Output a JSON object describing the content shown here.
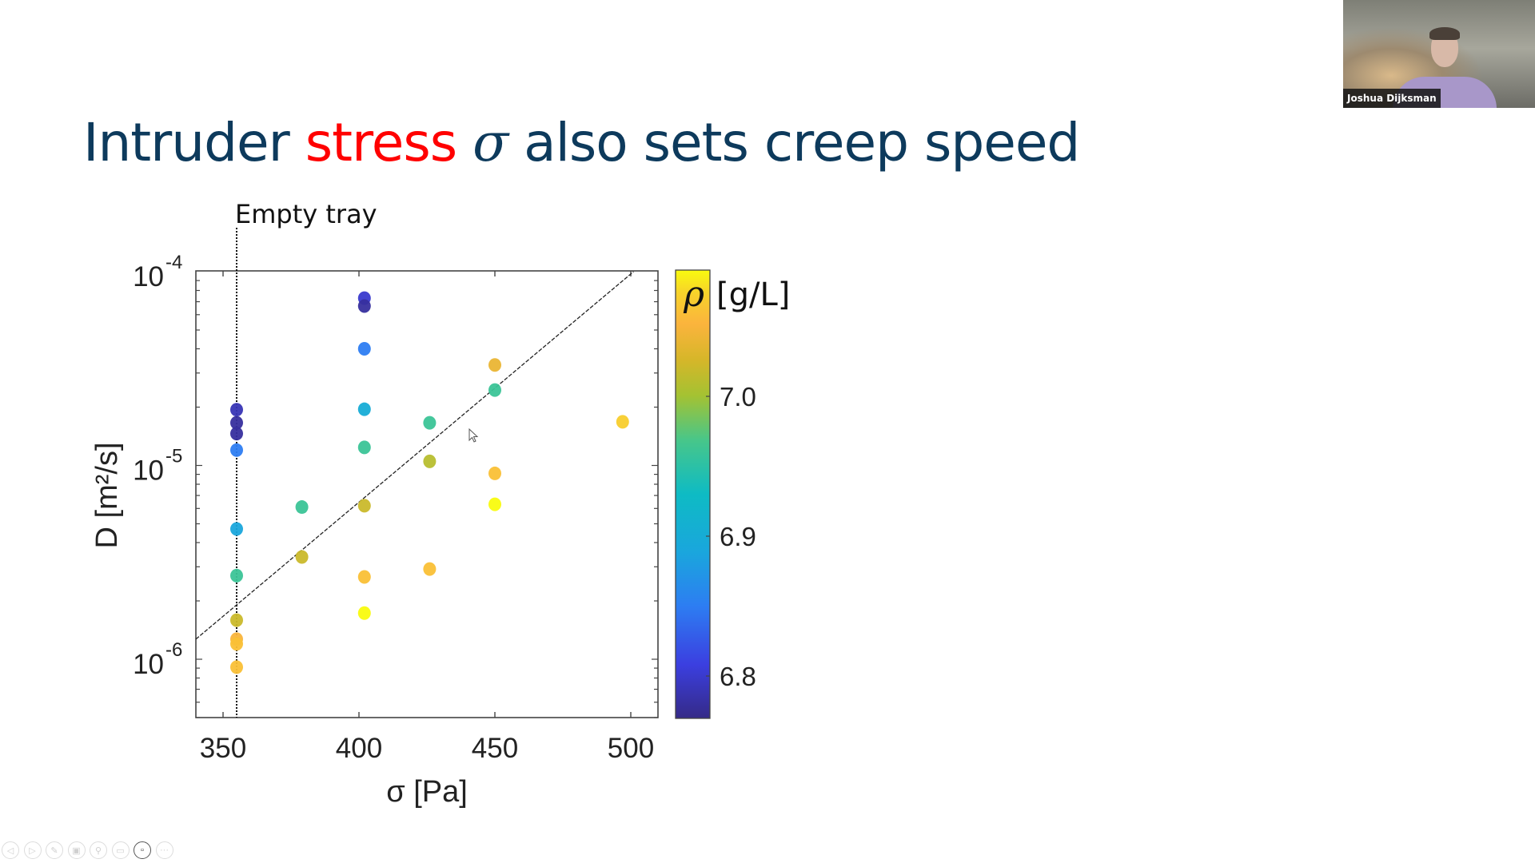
{
  "slide": {
    "title_parts": [
      {
        "text": "Intruder ",
        "style": "normal"
      },
      {
        "text": "stress",
        "style": "accent"
      },
      {
        "text": " ",
        "style": "normal"
      },
      {
        "text": "σ",
        "style": "sym"
      },
      {
        "text": " also sets creep speed",
        "style": "normal"
      }
    ],
    "colors": {
      "title": "#0d3a5c",
      "accent": "#ff0000"
    }
  },
  "webcam": {
    "participant_name": "Joshua Dijksman"
  },
  "toolbar": {
    "buttons": [
      {
        "name": "previous-slide",
        "glyph": "◁"
      },
      {
        "name": "next-slide",
        "glyph": "▷"
      },
      {
        "name": "pen",
        "glyph": "✎"
      },
      {
        "name": "see-all-slides",
        "glyph": "▣"
      },
      {
        "name": "zoom",
        "glyph": "⚲"
      },
      {
        "name": "subtitles",
        "glyph": "▭"
      },
      {
        "name": "camera",
        "glyph": "▫",
        "active": true
      },
      {
        "name": "more-options",
        "glyph": "···"
      }
    ]
  },
  "chart_data": {
    "type": "scatter",
    "title": "",
    "xlabel": "σ [Pa]",
    "ylabel": "D [m²/s]",
    "xscale": "linear",
    "yscale": "log",
    "xlim": [
      340,
      510
    ],
    "ylim": [
      5e-07,
      0.0001
    ],
    "xticks": [
      350,
      400,
      450,
      500
    ],
    "yticks": [
      {
        "value": 1e-06,
        "label_base": "10",
        "label_exp": "-6"
      },
      {
        "value": 1e-05,
        "label_base": "10",
        "label_exp": "-5"
      },
      {
        "value": 0.0001,
        "label_base": "10",
        "label_exp": "-4"
      }
    ],
    "grid": false,
    "colorbar": {
      "label_symbol": "ρ",
      "label_unit": "[g/L]",
      "range": [
        6.77,
        7.09
      ],
      "ticks": [
        6.8,
        6.9,
        7.0
      ],
      "tick_labels": [
        "6.8",
        "6.9",
        "7.0"
      ],
      "colormap": "parula"
    },
    "annotations": [
      {
        "type": "vline",
        "x": 355,
        "style": "dotted",
        "label": "Empty tray"
      },
      {
        "type": "fit_line",
        "style": "dashed",
        "from": [
          340,
          1.27e-06
        ],
        "to": [
          501,
          0.0001
        ]
      }
    ],
    "points": [
      {
        "x": 355,
        "y": 1.94e-05,
        "rho": 6.79
      },
      {
        "x": 355,
        "y": 1.66e-05,
        "rho": 6.78
      },
      {
        "x": 355,
        "y": 1.46e-05,
        "rho": 6.78
      },
      {
        "x": 355,
        "y": 1.2e-05,
        "rho": 6.85
      },
      {
        "x": 355,
        "y": 4.7e-06,
        "rho": 6.89
      },
      {
        "x": 355,
        "y": 2.7e-06,
        "rho": 6.96
      },
      {
        "x": 355,
        "y": 1.59e-06,
        "rho": 7.02
      },
      {
        "x": 355,
        "y": 1.27e-06,
        "rho": 7.05
      },
      {
        "x": 355,
        "y": 1.2e-06,
        "rho": 7.06
      },
      {
        "x": 355,
        "y": 9.1e-07,
        "rho": 7.06
      },
      {
        "x": 379,
        "y": 6.1e-06,
        "rho": 6.96
      },
      {
        "x": 379,
        "y": 3.37e-06,
        "rho": 7.02
      },
      {
        "x": 402,
        "y": 7.3e-05,
        "rho": 6.8
      },
      {
        "x": 402,
        "y": 6.65e-05,
        "rho": 6.78
      },
      {
        "x": 402,
        "y": 4e-05,
        "rho": 6.85
      },
      {
        "x": 402,
        "y": 1.95e-05,
        "rho": 6.9
      },
      {
        "x": 402,
        "y": 1.24e-05,
        "rho": 6.96
      },
      {
        "x": 402,
        "y": 6.2e-06,
        "rho": 7.02
      },
      {
        "x": 402,
        "y": 2.66e-06,
        "rho": 7.06
      },
      {
        "x": 402,
        "y": 1.73e-06,
        "rho": 7.09
      },
      {
        "x": 426,
        "y": 1.66e-05,
        "rho": 6.96
      },
      {
        "x": 426,
        "y": 1.05e-05,
        "rho": 7.01
      },
      {
        "x": 426,
        "y": 2.92e-06,
        "rho": 7.06
      },
      {
        "x": 450,
        "y": 3.3e-05,
        "rho": 7.04
      },
      {
        "x": 450,
        "y": 2.45e-05,
        "rho": 6.96
      },
      {
        "x": 450,
        "y": 9.1e-06,
        "rho": 7.06
      },
      {
        "x": 450,
        "y": 6.3e-06,
        "rho": 7.09
      },
      {
        "x": 497,
        "y": 1.68e-05,
        "rho": 7.07
      }
    ]
  }
}
